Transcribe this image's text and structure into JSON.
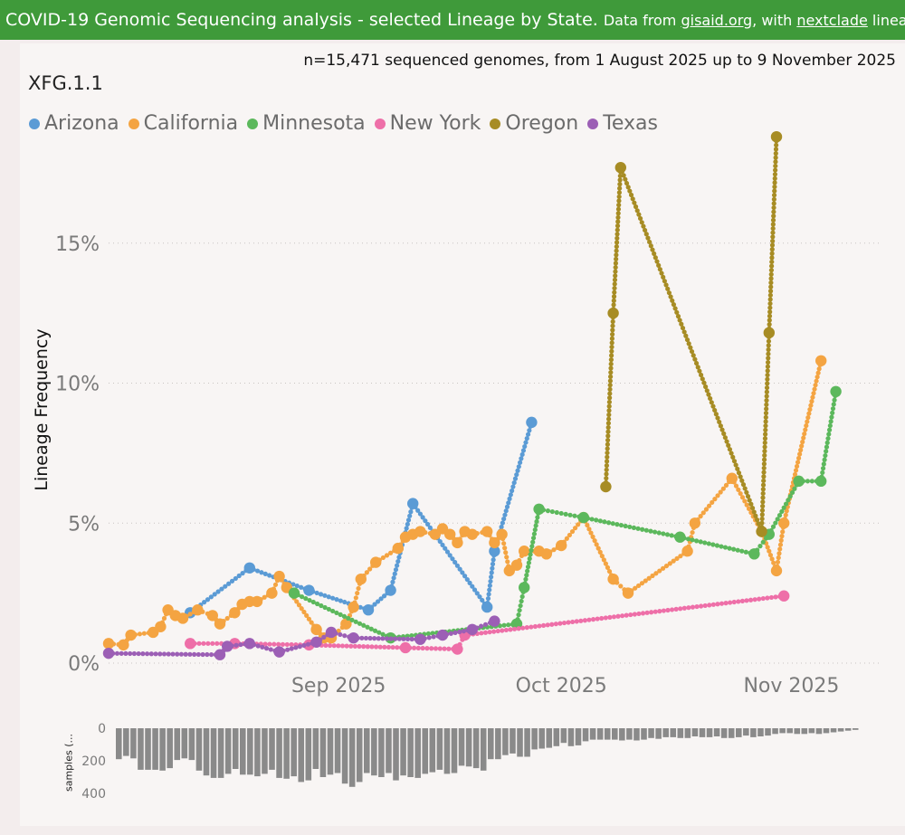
{
  "banner": {
    "title": "COVID-19 Genomic Sequencing analysis - selected Lineage by State.",
    "source_prefix": "Data from ",
    "source_link1": "gisaid.org",
    "source_mid": ", with ",
    "source_link2": "nextclade",
    "source_suffix": " lineages So"
  },
  "subtitle": "n=15,471 sequenced genomes, from 1 August 2025 up to 9 November 2025",
  "lineage": "XFG.1.1",
  "colors": {
    "banner": "#3f9a3a",
    "Arizona": "#5b9bd5",
    "California": "#f4a442",
    "Minnesota": "#5cb85c",
    "New York": "#ee6fa8",
    "Oregon": "#a78c24",
    "Texas": "#9c5fb5",
    "bars": "#8a8a8a"
  },
  "chart_data": [
    {
      "type": "line",
      "ylabel": "Lineage Frequency",
      "ylim": [
        0,
        0.19
      ],
      "yticks": [
        {
          "v": 0,
          "label": "0%"
        },
        {
          "v": 0.05,
          "label": "5%"
        },
        {
          "v": 0.1,
          "label": "10%"
        },
        {
          "v": 0.15,
          "label": "15%"
        }
      ],
      "xlim": [
        "2025-08-01",
        "2025-11-09"
      ],
      "xticks": [
        {
          "v": "2025-09-01",
          "label": "Sep 2025"
        },
        {
          "v": "2025-10-01",
          "label": "Oct 2025"
        },
        {
          "v": "2025-11-01",
          "label": "Nov 2025"
        }
      ],
      "grid": true,
      "legend_position": "top-left",
      "series": [
        {
          "name": "Arizona",
          "points": [
            [
              "2025-08-12",
              0.018
            ],
            [
              "2025-08-20",
              0.034
            ],
            [
              "2025-08-28",
              0.026
            ],
            [
              "2025-09-05",
              0.019
            ],
            [
              "2025-09-08",
              0.026
            ],
            [
              "2025-09-11",
              0.057
            ],
            [
              "2025-09-21",
              0.02
            ],
            [
              "2025-09-22",
              0.04
            ],
            [
              "2025-09-27",
              0.086
            ]
          ]
        },
        {
          "name": "California",
          "points": [
            [
              "2025-08-01",
              0.007
            ],
            [
              "2025-08-03",
              0.0065
            ],
            [
              "2025-08-04",
              0.01
            ],
            [
              "2025-08-07",
              0.011
            ],
            [
              "2025-08-08",
              0.013
            ],
            [
              "2025-08-09",
              0.019
            ],
            [
              "2025-08-10",
              0.017
            ],
            [
              "2025-08-11",
              0.016
            ],
            [
              "2025-08-13",
              0.019
            ],
            [
              "2025-08-15",
              0.017
            ],
            [
              "2025-08-16",
              0.014
            ],
            [
              "2025-08-18",
              0.018
            ],
            [
              "2025-08-19",
              0.021
            ],
            [
              "2025-08-20",
              0.022
            ],
            [
              "2025-08-21",
              0.022
            ],
            [
              "2025-08-23",
              0.025
            ],
            [
              "2025-08-24",
              0.031
            ],
            [
              "2025-08-25",
              0.027
            ],
            [
              "2025-08-29",
              0.012
            ],
            [
              "2025-08-30",
              0.009
            ],
            [
              "2025-08-31",
              0.009
            ],
            [
              "2025-09-02",
              0.014
            ],
            [
              "2025-09-03",
              0.02
            ],
            [
              "2025-09-04",
              0.03
            ],
            [
              "2025-09-06",
              0.036
            ],
            [
              "2025-09-09",
              0.041
            ],
            [
              "2025-09-10",
              0.045
            ],
            [
              "2025-09-11",
              0.046
            ],
            [
              "2025-09-12",
              0.047
            ],
            [
              "2025-09-14",
              0.046
            ],
            [
              "2025-09-15",
              0.048
            ],
            [
              "2025-09-16",
              0.046
            ],
            [
              "2025-09-17",
              0.043
            ],
            [
              "2025-09-18",
              0.047
            ],
            [
              "2025-09-19",
              0.046
            ],
            [
              "2025-09-21",
              0.047
            ],
            [
              "2025-09-22",
              0.043
            ],
            [
              "2025-09-23",
              0.046
            ],
            [
              "2025-09-24",
              0.033
            ],
            [
              "2025-09-25",
              0.035
            ],
            [
              "2025-09-26",
              0.04
            ],
            [
              "2025-09-28",
              0.04
            ],
            [
              "2025-09-29",
              0.039
            ],
            [
              "2025-10-01",
              0.042
            ],
            [
              "2025-10-04",
              0.052
            ],
            [
              "2025-10-08",
              0.03
            ],
            [
              "2025-10-10",
              0.025
            ],
            [
              "2025-10-18",
              0.04
            ],
            [
              "2025-10-19",
              0.05
            ],
            [
              "2025-10-24",
              0.066
            ],
            [
              "2025-10-28",
              0.047
            ],
            [
              "2025-10-30",
              0.033
            ],
            [
              "2025-10-31",
              0.05
            ],
            [
              "2025-11-05",
              0.108
            ]
          ]
        },
        {
          "name": "Minnesota",
          "points": [
            [
              "2025-08-26",
              0.025
            ],
            [
              "2025-09-08",
              0.009
            ],
            [
              "2025-09-25",
              0.014
            ],
            [
              "2025-09-26",
              0.027
            ],
            [
              "2025-09-28",
              0.055
            ],
            [
              "2025-10-04",
              0.052
            ],
            [
              "2025-10-17",
              0.045
            ],
            [
              "2025-10-27",
              0.039
            ],
            [
              "2025-10-29",
              0.046
            ],
            [
              "2025-11-02",
              0.065
            ],
            [
              "2025-11-05",
              0.065
            ],
            [
              "2025-11-07",
              0.097
            ]
          ]
        },
        {
          "name": "New York",
          "points": [
            [
              "2025-08-12",
              0.007
            ],
            [
              "2025-08-18",
              0.007
            ],
            [
              "2025-08-28",
              0.0065
            ],
            [
              "2025-09-10",
              0.0055
            ],
            [
              "2025-09-17",
              0.005
            ],
            [
              "2025-09-18",
              0.01
            ],
            [
              "2025-10-31",
              0.024
            ]
          ]
        },
        {
          "name": "Oregon",
          "points": [
            [
              "2025-10-07",
              0.063
            ],
            [
              "2025-10-08",
              0.125
            ],
            [
              "2025-10-09",
              0.177
            ],
            [
              "2025-10-28",
              0.047
            ],
            [
              "2025-10-29",
              0.118
            ],
            [
              "2025-10-30",
              0.188
            ]
          ]
        },
        {
          "name": "Texas",
          "points": [
            [
              "2025-08-01",
              0.0035
            ],
            [
              "2025-08-16",
              0.003
            ],
            [
              "2025-08-17",
              0.006
            ],
            [
              "2025-08-20",
              0.007
            ],
            [
              "2025-08-24",
              0.004
            ],
            [
              "2025-08-29",
              0.0075
            ],
            [
              "2025-08-31",
              0.011
            ],
            [
              "2025-09-03",
              0.009
            ],
            [
              "2025-09-12",
              0.0085
            ],
            [
              "2025-09-15",
              0.01
            ],
            [
              "2025-09-19",
              0.012
            ],
            [
              "2025-09-22",
              0.015
            ]
          ]
        }
      ]
    },
    {
      "type": "bar",
      "ylabel": "samples (...",
      "ylim": [
        0,
        400
      ],
      "yticks": [
        0,
        200,
        400
      ],
      "direction": "downward",
      "values": [
        190,
        170,
        185,
        255,
        255,
        255,
        260,
        245,
        195,
        185,
        195,
        260,
        290,
        305,
        305,
        280,
        250,
        285,
        285,
        295,
        280,
        255,
        305,
        310,
        295,
        330,
        320,
        250,
        300,
        285,
        275,
        340,
        360,
        330,
        275,
        290,
        300,
        275,
        320,
        290,
        300,
        305,
        280,
        270,
        255,
        280,
        275,
        230,
        235,
        245,
        260,
        190,
        190,
        165,
        155,
        175,
        175,
        130,
        125,
        120,
        110,
        90,
        110,
        105,
        80,
        70,
        70,
        70,
        70,
        75,
        70,
        75,
        70,
        60,
        65,
        55,
        55,
        60,
        60,
        50,
        55,
        55,
        50,
        60,
        60,
        55,
        45,
        55,
        50,
        45,
        35,
        30,
        30,
        35,
        35,
        30,
        35,
        30,
        25,
        20,
        15,
        10
      ]
    }
  ]
}
